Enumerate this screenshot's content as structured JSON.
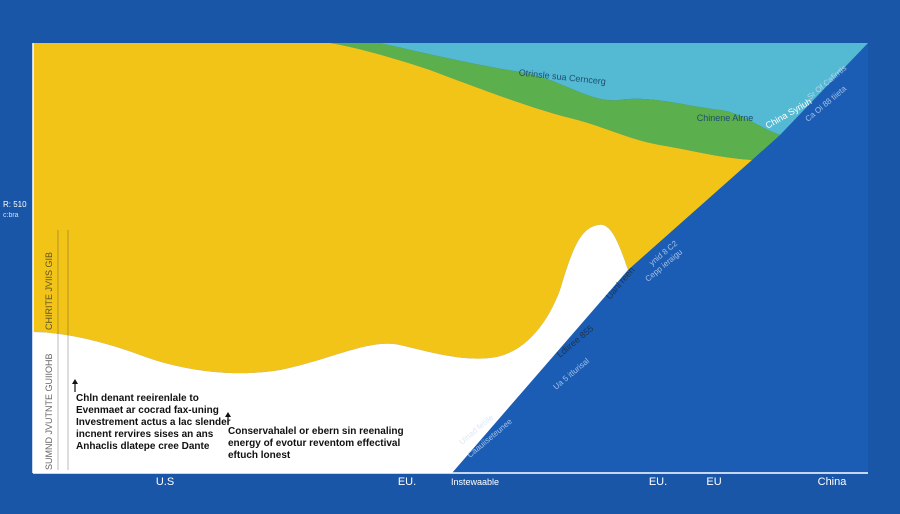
{
  "colors": {
    "background": "#1a56a8",
    "china_band": "#1b5db4",
    "yellow": "#f2c417",
    "green": "#5bb04d",
    "cyan": "#54b9d3",
    "white": "#ffffff",
    "axis": "#ffffff"
  },
  "chart_data": {
    "type": "area",
    "title": "",
    "xlabel": "",
    "ylabel": "",
    "x_tick_labels": [
      "U.S",
      "EU.",
      "Instewaable",
      "EU.",
      "EU",
      "China"
    ],
    "y_tick_labels": [
      "R: 510",
      "c:bra"
    ],
    "grid": false,
    "legend": "none",
    "series": [
      {
        "name": "Otrinsle sua Cerncerg",
        "color_key": "cyan"
      },
      {
        "name": "Chinene Alrne",
        "color_key": "green"
      },
      {
        "name": "China Syriuh",
        "color_key": "yellow"
      }
    ],
    "annotations": {
      "left_note": [
        "Chln denant reeirenlale to",
        "Evenmaet ar cocrad fax-uning",
        "Investrement actus a lac slender",
        "incnent rervires sises an ans",
        "Anhaclis dlatepe cree Dante"
      ],
      "middle_note": [
        "Conservahalel or ebern sin reenaling",
        "energy of evotur reventom effectival",
        "eftuch lonest"
      ],
      "diag_labels_upper": [
        "ynid 8 C2",
        "Cepp ieraigu",
        "Ua 5 itlurisal"
      ],
      "diag_labels_lower": [
        "Uinad fetiile",
        "Caauiiseteunee"
      ],
      "diag_labels_mid": [
        "Ldiiree 855",
        "Uanl reen"
      ],
      "diag_top_right": [
        "Sr Of Cafirrtls",
        "Ca Oi 88 tiieta"
      ],
      "left_vertical": [
        "CHIRITE JVIIS GIB",
        "SUMND JVUTNTE GUIIOHB"
      ]
    }
  }
}
